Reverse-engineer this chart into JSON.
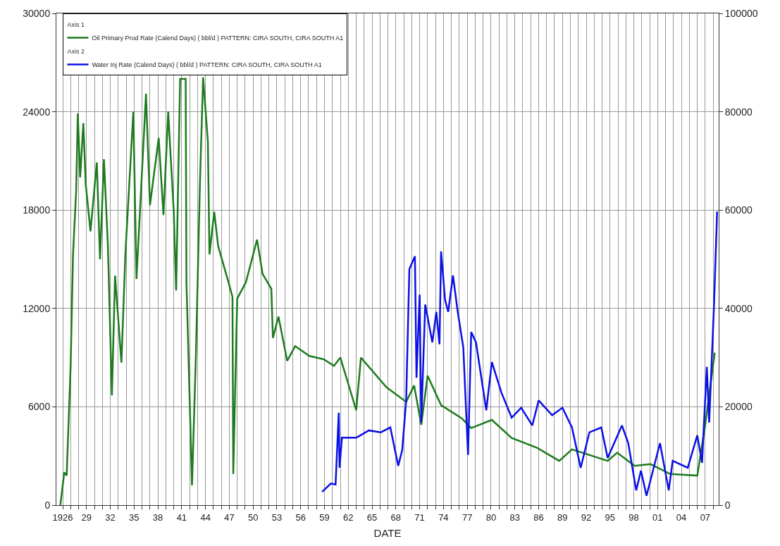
{
  "chart_data": {
    "type": "line",
    "xlabel": "DATE",
    "annotations": [
      "Axis 1",
      "Axis 2"
    ],
    "xlim": [
      1925.2,
      2008.7
    ],
    "xticks": [
      {
        "value": 1926,
        "label": "1926"
      },
      {
        "value": 1927,
        "label": null
      },
      {
        "value": 1928,
        "label": null
      },
      {
        "value": 1929,
        "label": "29"
      },
      {
        "value": 1930,
        "label": null
      },
      {
        "value": 1931,
        "label": null
      },
      {
        "value": 1932,
        "label": "32"
      },
      {
        "value": 1933,
        "label": null
      },
      {
        "value": 1934,
        "label": null
      },
      {
        "value": 1935,
        "label": "35"
      },
      {
        "value": 1936,
        "label": null
      },
      {
        "value": 1937,
        "label": null
      },
      {
        "value": 1938,
        "label": "38"
      },
      {
        "value": 1939,
        "label": null
      },
      {
        "value": 1940,
        "label": null
      },
      {
        "value": 1941,
        "label": "41"
      },
      {
        "value": 1942,
        "label": null
      },
      {
        "value": 1943,
        "label": null
      },
      {
        "value": 1944,
        "label": "44"
      },
      {
        "value": 1945,
        "label": null
      },
      {
        "value": 1946,
        "label": null
      },
      {
        "value": 1947,
        "label": "47"
      },
      {
        "value": 1948,
        "label": null
      },
      {
        "value": 1949,
        "label": null
      },
      {
        "value": 1950,
        "label": "50"
      },
      {
        "value": 1951,
        "label": null
      },
      {
        "value": 1952,
        "label": null
      },
      {
        "value": 1953,
        "label": "53"
      },
      {
        "value": 1954,
        "label": null
      },
      {
        "value": 1955,
        "label": null
      },
      {
        "value": 1956,
        "label": "56"
      },
      {
        "value": 1957,
        "label": null
      },
      {
        "value": 1958,
        "label": null
      },
      {
        "value": 1959,
        "label": "59"
      },
      {
        "value": 1960,
        "label": null
      },
      {
        "value": 1961,
        "label": null
      },
      {
        "value": 1962,
        "label": "62"
      },
      {
        "value": 1963,
        "label": null
      },
      {
        "value": 1964,
        "label": null
      },
      {
        "value": 1965,
        "label": "65"
      },
      {
        "value": 1966,
        "label": null
      },
      {
        "value": 1967,
        "label": null
      },
      {
        "value": 1968,
        "label": "68"
      },
      {
        "value": 1969,
        "label": null
      },
      {
        "value": 1970,
        "label": null
      },
      {
        "value": 1971,
        "label": "71"
      },
      {
        "value": 1972,
        "label": null
      },
      {
        "value": 1973,
        "label": null
      },
      {
        "value": 1974,
        "label": "74"
      },
      {
        "value": 1975,
        "label": null
      },
      {
        "value": 1976,
        "label": null
      },
      {
        "value": 1977,
        "label": "77"
      },
      {
        "value": 1978,
        "label": null
      },
      {
        "value": 1979,
        "label": null
      },
      {
        "value": 1980,
        "label": "80"
      },
      {
        "value": 1981,
        "label": null
      },
      {
        "value": 1982,
        "label": null
      },
      {
        "value": 1983,
        "label": "83"
      },
      {
        "value": 1984,
        "label": null
      },
      {
        "value": 1985,
        "label": null
      },
      {
        "value": 1986,
        "label": "86"
      },
      {
        "value": 1987,
        "label": null
      },
      {
        "value": 1988,
        "label": null
      },
      {
        "value": 1989,
        "label": "89"
      },
      {
        "value": 1990,
        "label": null
      },
      {
        "value": 1991,
        "label": null
      },
      {
        "value": 1992,
        "label": "92"
      },
      {
        "value": 1993,
        "label": null
      },
      {
        "value": 1994,
        "label": null
      },
      {
        "value": 1995,
        "label": "95"
      },
      {
        "value": 1996,
        "label": null
      },
      {
        "value": 1997,
        "label": null
      },
      {
        "value": 1998,
        "label": "98"
      },
      {
        "value": 1999,
        "label": null
      },
      {
        "value": 2000,
        "label": null
      },
      {
        "value": 2001,
        "label": "01"
      },
      {
        "value": 2002,
        "label": null
      },
      {
        "value": 2003,
        "label": null
      },
      {
        "value": 2004,
        "label": "04"
      },
      {
        "value": 2005,
        "label": null
      },
      {
        "value": 2006,
        "label": null
      },
      {
        "value": 2007,
        "label": "07"
      },
      {
        "value": 2008,
        "label": null
      }
    ],
    "ylim": [
      0,
      30000
    ],
    "yticks": [
      0,
      6000,
      12000,
      18000,
      24000,
      30000
    ],
    "y2lim": [
      0,
      100000
    ],
    "y2ticks": [
      0,
      20000,
      40000,
      60000,
      80000,
      100000
    ],
    "grid": true,
    "legend": "top left",
    "line_style": "solid",
    "marker": "none",
    "series": [
      {
        "name": "Oil Primary Prod Rate (Calend Days) ( bbl/d ) PATTERN: CIRA SOUTH, CIRA SOUTH A1",
        "color": "#1e7b1e",
        "x": [
          1925.7,
          1926.2,
          1926.5,
          1927,
          1927.3,
          1927.7,
          1927.9,
          1928.2,
          1928.6,
          1928.9,
          1929.5,
          1930.3,
          1930.7,
          1931.2,
          1931.7,
          1932.2,
          1932.6,
          1933.4,
          1933.9,
          1934.9,
          1935.3,
          1936.5,
          1937,
          1938.1,
          1938.7,
          1939.3,
          1940,
          1940.3,
          1940.8,
          1941.5,
          1941.6,
          1942.3,
          1942.8,
          1943.3,
          1943.7,
          1944.3,
          1944.5,
          1945.1,
          1945.6,
          1946.9,
          1947.4,
          1947.5,
          1948,
          1949.1,
          1950.5,
          1951.2,
          1952.3,
          1952.5,
          1953.2,
          1954.3,
          1955.3,
          1957.1,
          1958.9,
          1960.2,
          1961,
          1963,
          1963.6,
          1966.8,
          1969.3,
          1970.3,
          1971.2,
          1972,
          1973.7,
          1976.3,
          1977.5,
          1980.1,
          1982.6,
          1985.8,
          1988.6,
          1990.2,
          1994.7,
          1995.9,
          1998.1,
          2000.1,
          2002.6,
          2006,
          2007,
          2008.2
        ],
        "values": [
          0,
          2000,
          1800,
          8500,
          15300,
          19200,
          23900,
          20000,
          23300,
          19600,
          16700,
          20900,
          15000,
          21100,
          15800,
          6700,
          14000,
          8700,
          15300,
          24000,
          13800,
          25100,
          18300,
          22400,
          17700,
          24000,
          17900,
          13100,
          26000,
          26000,
          13600,
          1200,
          9300,
          19600,
          26100,
          22200,
          15300,
          17900,
          15800,
          13600,
          12700,
          1900,
          12600,
          13600,
          16200,
          14100,
          13200,
          10200,
          11500,
          8800,
          9700,
          9100,
          8900,
          8500,
          9000,
          5800,
          9000,
          7200,
          6300,
          7300,
          4900,
          7900,
          6100,
          5300,
          4700,
          5200,
          4100,
          3500,
          2700,
          3400,
          2700,
          3200,
          2400,
          2500,
          1900,
          1800,
          4900,
          9300
        ]
      },
      {
        "name": "Water Inj Rate (Calend Days) ( bbl/d ) PATTERN: CIRA SOUTH, CIRA SOUTH A1",
        "color": "#0a10e6",
        "axis": "y2",
        "x": [
          1958.7,
          1959.8,
          1960.4,
          1960.8,
          1960.9,
          1961.2,
          1963,
          1964.6,
          1966.1,
          1967.3,
          1968.3,
          1968.8,
          1969.3,
          1969.7,
          1970.4,
          1970.6,
          1971,
          1971.2,
          1971.7,
          1972.6,
          1973.1,
          1973.5,
          1973.7,
          1974.2,
          1974.6,
          1975.2,
          1975.8,
          1976.5,
          1977.1,
          1977.5,
          1978.1,
          1979.4,
          1980.1,
          1981.3,
          1982.6,
          1983.8,
          1985.2,
          1986,
          1987.7,
          1989,
          1990.2,
          1991.3,
          1992.4,
          1993.9,
          1994.7,
          1996.5,
          1997.3,
          1998.3,
          1998.9,
          1999.6,
          2001.3,
          2002.4,
          2002.9,
          2004.8,
          2006,
          2006.6,
          2007.2,
          2007.5,
          2008.1,
          2008.5
        ],
        "values": [
          2700,
          4400,
          4200,
          18800,
          7600,
          13700,
          13700,
          15200,
          14800,
          15800,
          8000,
          11200,
          21300,
          48000,
          50600,
          25900,
          42800,
          16800,
          40800,
          33100,
          39300,
          32700,
          51600,
          41800,
          39300,
          46700,
          39300,
          32100,
          10200,
          35200,
          33100,
          19300,
          29100,
          22900,
          17800,
          19800,
          16200,
          21300,
          18300,
          19800,
          15800,
          7600,
          14800,
          15800,
          9600,
          16200,
          12600,
          3000,
          7000,
          1900,
          12600,
          3000,
          9000,
          7600,
          14200,
          8600,
          28100,
          16800,
          40300,
          59700
        ]
      }
    ]
  }
}
